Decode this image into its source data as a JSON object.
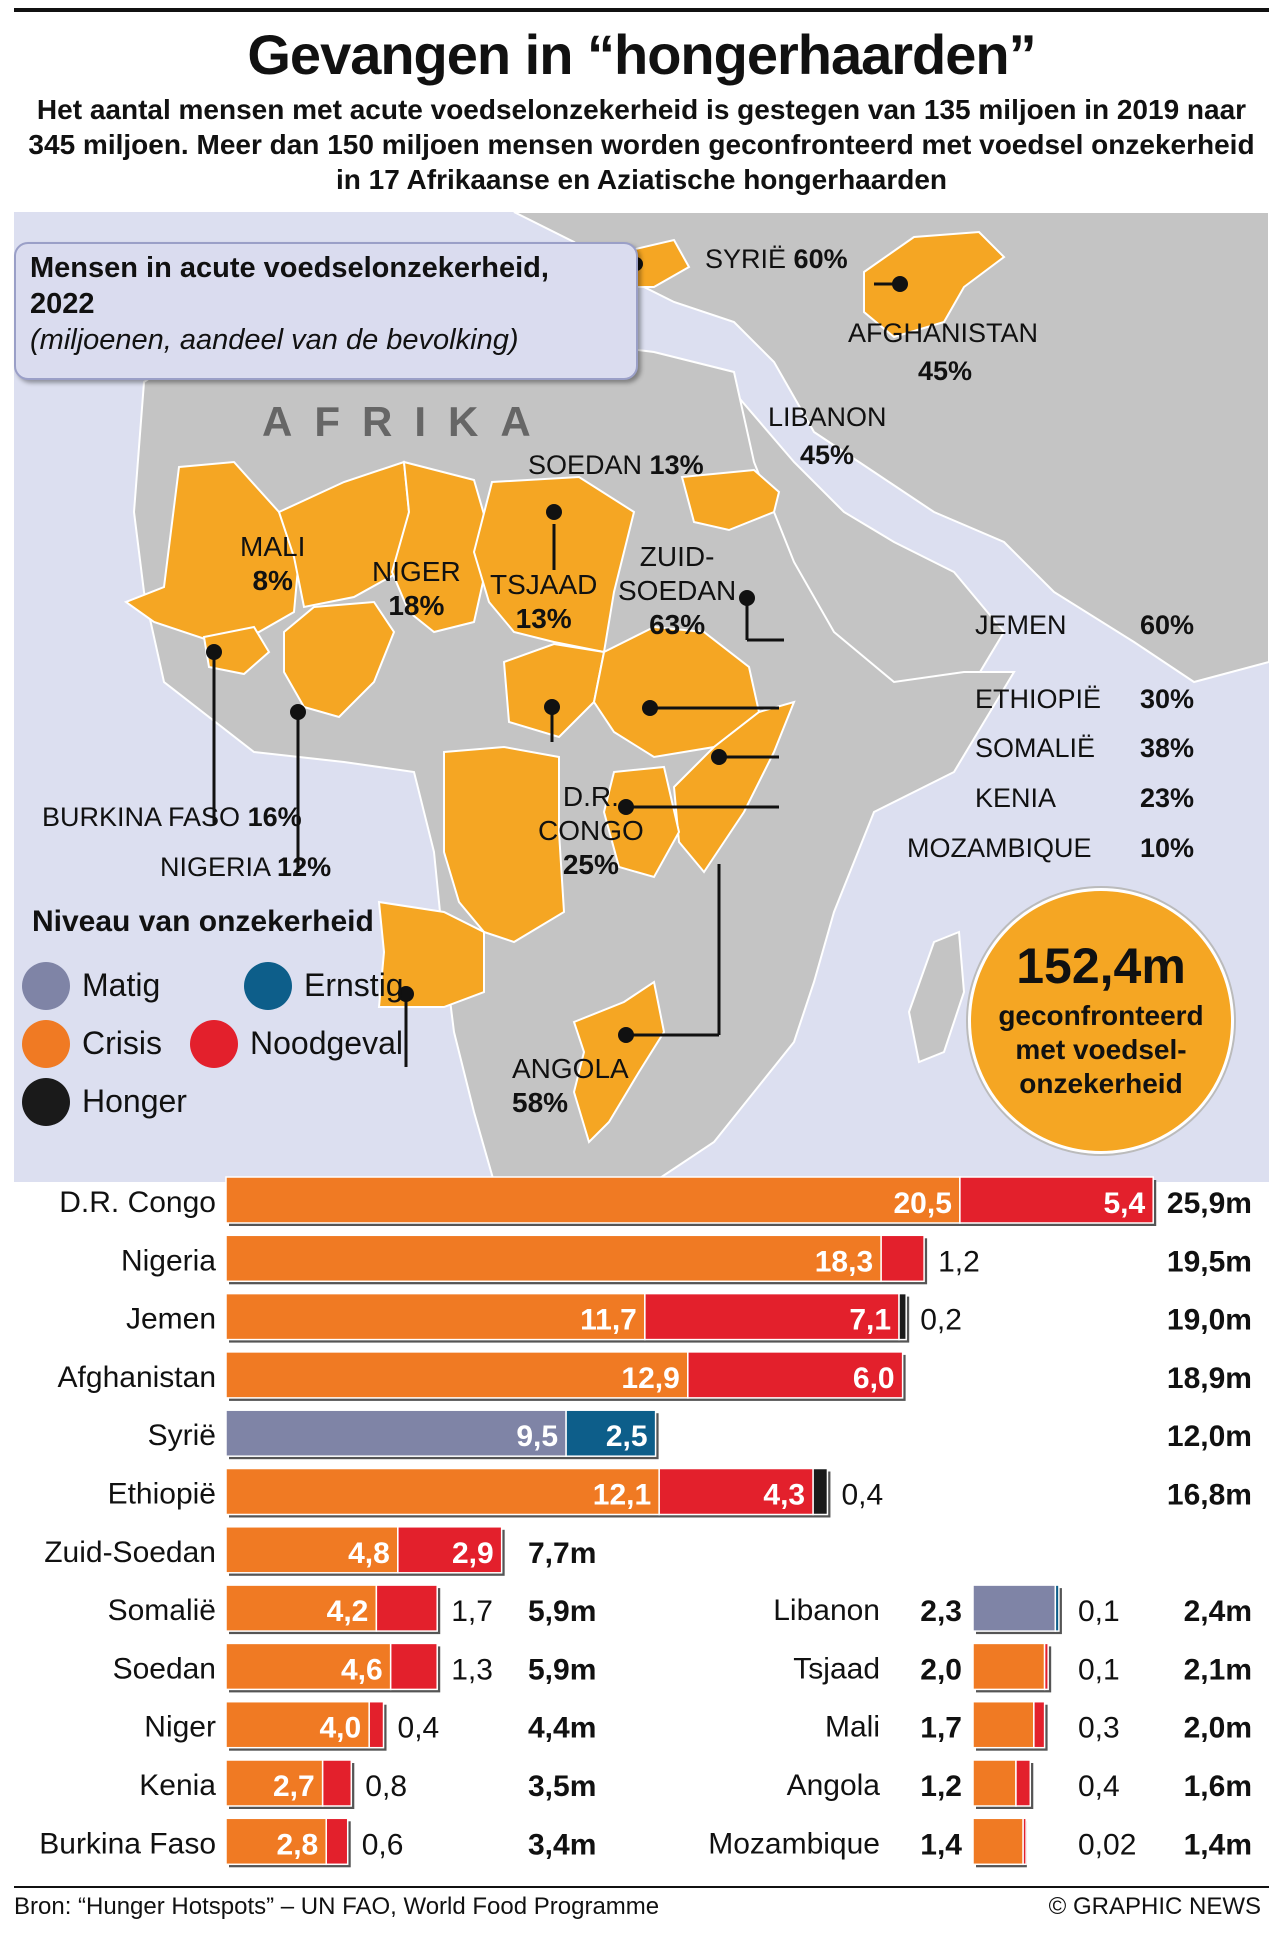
{
  "title": "Gevangen in “hongerhaarden”",
  "subtitle": "Het aantal mensen met acute voedselonzekerheid is gestegen van 135 miljoen in 2019 naar 345 miljoen. Meer dan 150 miljoen mensen worden geconfronteerd met voedsel onzekerheid in 17 Afrikaanse en Aziatische hongerhaarden",
  "map": {
    "box_title": "Mensen in acute voedselonzekerheid, 2022",
    "box_subtitle": "(miljoenen, aandeel van de bevolking)",
    "continent": "AFRIKA",
    "labels": {
      "syria": {
        "name": "SYRIË",
        "pct": "60%"
      },
      "afghanistan": {
        "name": "AFGHANISTAN",
        "pct": "45%"
      },
      "lebanon": {
        "name": "LIBANON",
        "pct": "45%"
      },
      "sudan": {
        "name": "SOEDAN",
        "pct": "13%"
      },
      "mali": {
        "name": "MALI",
        "pct": "8%"
      },
      "niger": {
        "name": "NIGER",
        "pct": "18%"
      },
      "chad": {
        "name": "TSJAAD",
        "pct": "13%"
      },
      "south_sudan": {
        "name1": "ZUID-",
        "name2": "SOEDAN",
        "pct": "63%"
      },
      "yemen": {
        "name": "JEMEN",
        "pct": "60%"
      },
      "ethiopia": {
        "name": "ETHIOPIË",
        "pct": "30%"
      },
      "somalia": {
        "name": "SOMALIË",
        "pct": "38%"
      },
      "kenya": {
        "name": "KENIA",
        "pct": "23%"
      },
      "mozambique": {
        "name": "MOZAMBIQUE",
        "pct": "10%"
      },
      "drc": {
        "name1": "D.R.",
        "name2": "CONGO",
        "pct": "25%"
      },
      "burkina": {
        "name": "BURKINA FASO",
        "pct": "16%"
      },
      "nigeria": {
        "name": "NIGERIA",
        "pct": "12%"
      },
      "angola": {
        "name": "ANGOLA",
        "pct": "58%"
      }
    },
    "colors": {
      "sea": "#dcdff0",
      "land": "#c4c4c4",
      "hotspot": "#f5a623",
      "border": "#ffffff"
    }
  },
  "legend": {
    "title": "Niveau van onzekerheid",
    "items": [
      {
        "label": "Matig",
        "color": "#7f84a6"
      },
      {
        "label": "Ernstig",
        "color": "#0d5e8a"
      },
      {
        "label": "Crisis",
        "color": "#f07a23"
      },
      {
        "label": "Noodgeval",
        "color": "#e3202c"
      },
      {
        "label": "Honger",
        "color": "#1a1a1a"
      }
    ]
  },
  "bubble": {
    "value": "152,4m",
    "text1": "geconfronteerd",
    "text2": "met voedsel-",
    "text3": "onzekerheid"
  },
  "chart_data": {
    "type": "bar",
    "stacked": true,
    "unit": "miljoen",
    "segment_order": [
      "Matig",
      "Ernstig",
      "Crisis",
      "Noodgeval",
      "Honger"
    ],
    "rows": [
      {
        "country": "D.R. Congo",
        "total": "25,9m",
        "segments": [
          {
            "level": "Crisis",
            "value": 20.5,
            "label": "20,5"
          },
          {
            "level": "Noodgeval",
            "value": 5.4,
            "label": "5,4"
          }
        ]
      },
      {
        "country": "Nigeria",
        "total": "19,5m",
        "segments": [
          {
            "level": "Crisis",
            "value": 18.3,
            "label": "18,3"
          },
          {
            "level": "Noodgeval",
            "value": 1.2,
            "label": "1,2"
          }
        ]
      },
      {
        "country": "Jemen",
        "total": "19,0m",
        "segments": [
          {
            "level": "Crisis",
            "value": 11.7,
            "label": "11,7"
          },
          {
            "level": "Noodgeval",
            "value": 7.1,
            "label": "7,1"
          },
          {
            "level": "Honger",
            "value": 0.2,
            "label": "0,2"
          }
        ]
      },
      {
        "country": "Afghanistan",
        "total": "18,9m",
        "segments": [
          {
            "level": "Crisis",
            "value": 12.9,
            "label": "12,9"
          },
          {
            "level": "Noodgeval",
            "value": 6.0,
            "label": "6,0"
          }
        ]
      },
      {
        "country": "Syrië",
        "total": "12,0m",
        "segments": [
          {
            "level": "Matig",
            "value": 9.5,
            "label": "9,5"
          },
          {
            "level": "Ernstig",
            "value": 2.5,
            "label": "2,5"
          }
        ]
      },
      {
        "country": "Ethiopië",
        "total": "16,8m",
        "segments": [
          {
            "level": "Crisis",
            "value": 12.1,
            "label": "12,1"
          },
          {
            "level": "Noodgeval",
            "value": 4.3,
            "label": "4,3"
          },
          {
            "level": "Honger",
            "value": 0.4,
            "label": "0,4"
          }
        ]
      },
      {
        "country": "Zuid-Soedan",
        "total": "7,7m",
        "segments": [
          {
            "level": "Crisis",
            "value": 4.8,
            "label": "4,8"
          },
          {
            "level": "Noodgeval",
            "value": 2.9,
            "label": "2,9"
          }
        ]
      },
      {
        "country": "Somalië",
        "total": "5,9m",
        "segments": [
          {
            "level": "Crisis",
            "value": 4.2,
            "label": "4,2"
          },
          {
            "level": "Noodgeval",
            "value": 1.7,
            "label": "1,7"
          }
        ]
      },
      {
        "country": "Soedan",
        "total": "5,9m",
        "segments": [
          {
            "level": "Crisis",
            "value": 4.6,
            "label": "4,6"
          },
          {
            "level": "Noodgeval",
            "value": 1.3,
            "label": "1,3"
          }
        ]
      },
      {
        "country": "Niger",
        "total": "4,4m",
        "segments": [
          {
            "level": "Crisis",
            "value": 4.0,
            "label": "4,0"
          },
          {
            "level": "Noodgeval",
            "value": 0.4,
            "label": "0,4"
          }
        ]
      },
      {
        "country": "Kenia",
        "total": "3,5m",
        "segments": [
          {
            "level": "Crisis",
            "value": 2.7,
            "label": "2,7"
          },
          {
            "level": "Noodgeval",
            "value": 0.8,
            "label": "0,8"
          }
        ]
      },
      {
        "country": "Burkina Faso",
        "total": "3,4m",
        "segments": [
          {
            "level": "Crisis",
            "value": 2.8,
            "label": "2,8"
          },
          {
            "level": "Noodgeval",
            "value": 0.6,
            "label": "0,6"
          }
        ]
      },
      {
        "country": "Libanon",
        "total": "2,4m",
        "segments": [
          {
            "level": "Matig",
            "value": 2.3,
            "label": "2,3"
          },
          {
            "level": "Ernstig",
            "value": 0.1,
            "label": "0,1"
          }
        ]
      },
      {
        "country": "Tsjaad",
        "total": "2,1m",
        "segments": [
          {
            "level": "Crisis",
            "value": 2.0,
            "label": "2,0"
          },
          {
            "level": "Noodgeval",
            "value": 0.1,
            "label": "0,1"
          }
        ]
      },
      {
        "country": "Mali",
        "total": "2,0m",
        "segments": [
          {
            "level": "Crisis",
            "value": 1.7,
            "label": "1,7"
          },
          {
            "level": "Noodgeval",
            "value": 0.3,
            "label": "0,3"
          }
        ]
      },
      {
        "country": "Angola",
        "total": "1,6m",
        "segments": [
          {
            "level": "Crisis",
            "value": 1.2,
            "label": "1,2"
          },
          {
            "level": "Noodgeval",
            "value": 0.4,
            "label": "0,4"
          }
        ]
      },
      {
        "country": "Mozambique",
        "total": "1,4m",
        "segments": [
          {
            "level": "Crisis",
            "value": 1.4,
            "label": "1,4"
          },
          {
            "level": "Noodgeval",
            "value": 0.02,
            "label": "0,02"
          }
        ]
      }
    ]
  },
  "footer": {
    "source": "Bron: “Hunger Hotspots” – UN FAO, World Food Programme",
    "credit": "© GRAPHIC NEWS"
  }
}
